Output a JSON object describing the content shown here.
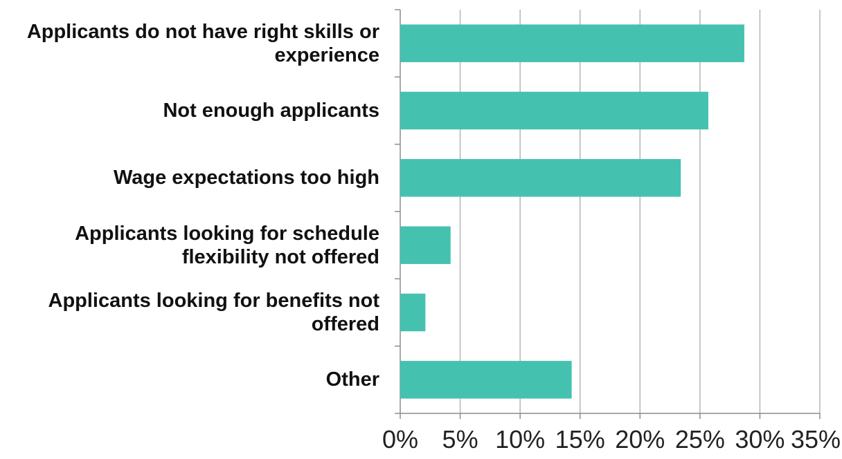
{
  "chart_data": {
    "type": "bar",
    "orientation": "horizontal",
    "categories": [
      "Applicants do not have right skills or experience",
      "Not enough applicants",
      "Wage expectations too high",
      "Applicants looking for schedule flexibility not offered",
      "Applicants looking for benefits not offered",
      "Other"
    ],
    "values": [
      28.7,
      25.7,
      23.4,
      4.2,
      2.1,
      14.3
    ],
    "xlim": [
      0,
      35
    ],
    "x_ticks": [
      "0%",
      "5%",
      "10%",
      "15%",
      "20%",
      "25%",
      "30%",
      "35%"
    ],
    "title": "",
    "xlabel": "",
    "ylabel": "",
    "grid": "vertical",
    "legend": "none",
    "colors": {
      "bar": "#45c1b0",
      "grid": "#b5b5b5",
      "axis": "#8c8c8c"
    }
  }
}
